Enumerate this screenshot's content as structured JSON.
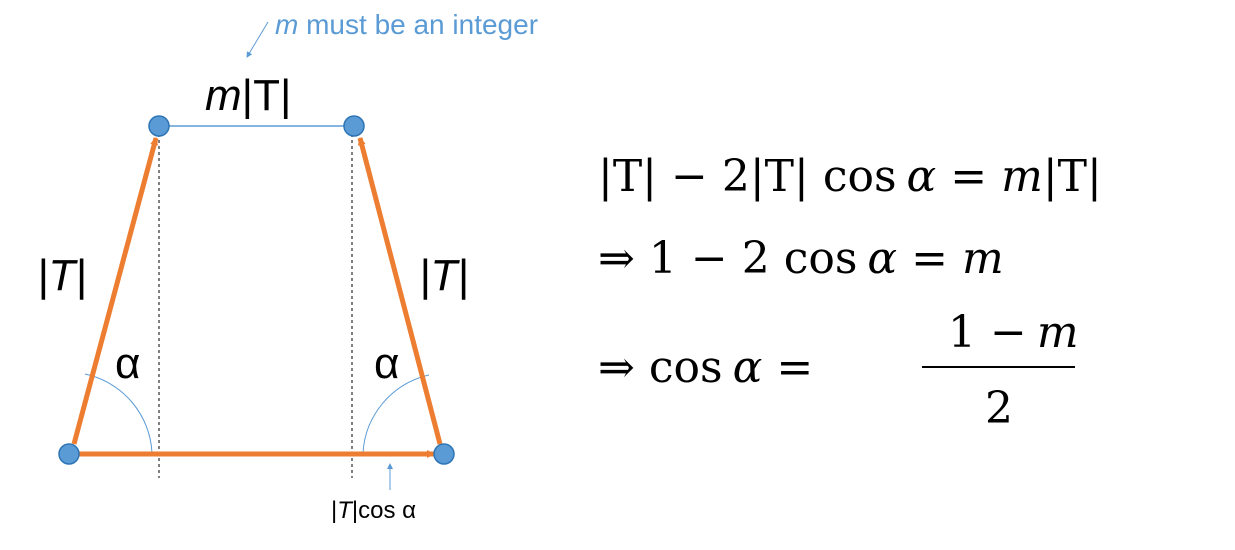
{
  "colors": {
    "arrow": "#ED7D31",
    "node_fill": "#5B9BD5",
    "node_stroke": "#2E75B6",
    "annotation": "#5B9BD5",
    "line": "#5B9BD5",
    "text": "#000000"
  },
  "annotation_top": {
    "var": "m",
    "text": " must be an integer"
  },
  "annotation_bottom": {
    "prefix": "|",
    "var": "T",
    "suffix": "|cos α"
  },
  "labels": {
    "top_length": {
      "var": "m",
      "rest": "|T|"
    },
    "left_side": "|T|",
    "right_side": "|T|",
    "left_angle": "α",
    "right_angle": "α"
  },
  "equations": {
    "line1": {
      "left": "|T| − 2|T| cos",
      "alpha": "α",
      "eq": "=",
      "var": "m",
      "right": "|T|"
    },
    "line2": {
      "arrow": "⇒",
      "left": "1 − 2 cos",
      "alpha": "α",
      "eq": "=",
      "var": "m"
    },
    "line3": {
      "arrow": "⇒",
      "left": "cos",
      "alpha": "α",
      "eq": "=",
      "numerator_num": "1 −",
      "numerator_var": "m",
      "denominator": "2"
    }
  }
}
